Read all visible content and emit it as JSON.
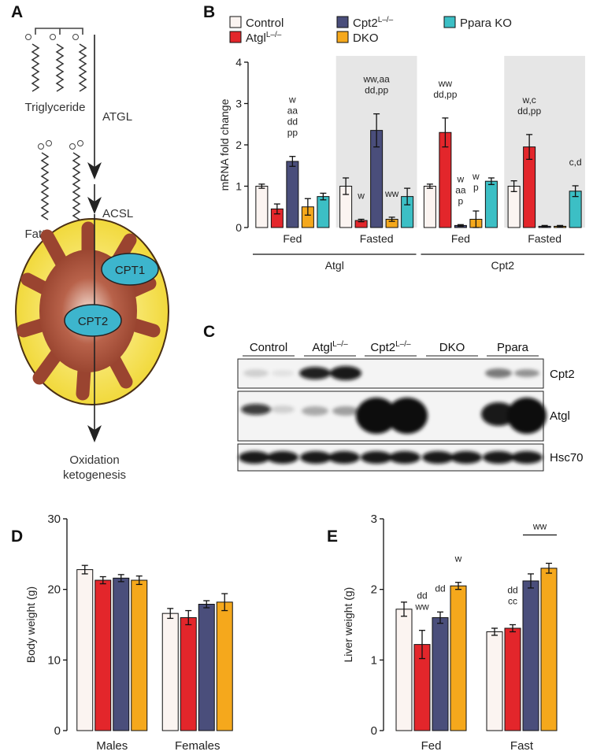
{
  "panel_labels": [
    "A",
    "B",
    "C",
    "D",
    "E"
  ],
  "diagram": {
    "molecules": [
      "Triglyceride",
      "Fatty acid"
    ],
    "enzymes": [
      "ATGL",
      "ACSL"
    ],
    "transporters": [
      "CPT1",
      "CPT2"
    ],
    "outcome": [
      "Oxidation",
      "ketogenesis"
    ]
  },
  "blot": {
    "lanes": [
      {
        "name": "Control"
      },
      {
        "name": "Atgl",
        "sup": "L–/–"
      },
      {
        "name": "Cpt2",
        "sup": "L–/–"
      },
      {
        "name": "DKO"
      },
      {
        "name": "Ppara"
      }
    ],
    "rows": [
      "Cpt2",
      "Atgl",
      "Hsc70"
    ]
  },
  "chart_data": [
    {
      "type": "bar",
      "ylabel": "mRNA fold change",
      "categories": [
        "Fed",
        "Fasted",
        "Fed",
        "Fasted"
      ],
      "group_labels": [
        "Atgl",
        "Cpt2"
      ],
      "shaded": [
        false,
        true,
        false,
        true
      ],
      "legend": true,
      "ylim": [
        0,
        4
      ],
      "yticks": [
        0,
        1,
        2,
        3,
        4
      ],
      "series": [
        {
          "name": "Control",
          "color": "#fbf4f1",
          "values": [
            1.0,
            1.0,
            1.0,
            1.0
          ],
          "errors": [
            0.05,
            0.2,
            0.05,
            0.13
          ]
        },
        {
          "name": "Atgl",
          "name_sup": "L–/–",
          "color": "#e3262b",
          "values": [
            0.45,
            0.17,
            2.3,
            1.95
          ],
          "errors": [
            0.12,
            0.03,
            0.35,
            0.3
          ],
          "annotations": [
            null,
            [
              "w"
            ],
            [
              "ww",
              "dd,pp"
            ],
            [
              "w,c",
              "dd,pp"
            ]
          ]
        },
        {
          "name": "Cpt2",
          "name_sup": "L–/–",
          "color": "#4a4e7b",
          "values": [
            1.6,
            2.35,
            0.05,
            0.03
          ],
          "errors": [
            0.12,
            0.4,
            0.02,
            0.02
          ],
          "annotations": [
            [
              "w",
              "aa",
              "dd",
              "pp"
            ],
            [
              "ww,aa",
              "dd,pp"
            ],
            [
              "w",
              "aa",
              "p"
            ],
            null
          ]
        },
        {
          "name": "DKO",
          "color": "#f5a81c",
          "values": [
            0.5,
            0.2,
            0.2,
            0.03
          ],
          "errors": [
            0.2,
            0.05,
            0.2,
            0.02
          ],
          "annotations": [
            null,
            [
              "ww"
            ],
            [
              "w",
              "p"
            ],
            null
          ]
        },
        {
          "name": "Ppara KO",
          "color": "#3cbfc5",
          "values": [
            0.75,
            0.75,
            1.12,
            0.88
          ],
          "errors": [
            0.08,
            0.2,
            0.08,
            0.13
          ],
          "annotations": [
            null,
            null,
            null,
            [
              "c,d"
            ]
          ]
        }
      ]
    },
    {
      "type": "bar",
      "ylabel": "Body weight (g)",
      "categories": [
        "Males",
        "Females"
      ],
      "ylim": [
        0,
        30
      ],
      "yticks": [
        0,
        10,
        20,
        30
      ],
      "series": [
        {
          "color": "#fbf4f1",
          "values": [
            22.8,
            16.6
          ],
          "errors": [
            0.6,
            0.7
          ]
        },
        {
          "color": "#e3262b",
          "values": [
            21.3,
            16.0
          ],
          "errors": [
            0.5,
            1.0
          ]
        },
        {
          "color": "#4a4e7b",
          "values": [
            21.6,
            17.9
          ],
          "errors": [
            0.5,
            0.5
          ]
        },
        {
          "color": "#f5a81c",
          "values": [
            21.3,
            18.2
          ],
          "errors": [
            0.6,
            1.2
          ]
        }
      ]
    },
    {
      "type": "bar",
      "ylabel": "Liver weight (g)",
      "categories": [
        "Fed",
        "Fast"
      ],
      "ylim": [
        0,
        3
      ],
      "yticks": [
        0,
        1,
        2,
        3
      ],
      "bracket_label": "ww",
      "series": [
        {
          "color": "#fbf4f1",
          "values": [
            1.72,
            1.4
          ],
          "errors": [
            0.1,
            0.05
          ]
        },
        {
          "color": "#e3262b",
          "values": [
            1.22,
            1.45
          ],
          "errors": [
            0.2,
            0.05
          ],
          "annotations": [
            [
              "dd",
              "ww"
            ],
            [
              "dd",
              "cc"
            ]
          ]
        },
        {
          "color": "#4a4e7b",
          "values": [
            1.6,
            2.12
          ],
          "errors": [
            0.08,
            0.1
          ],
          "annotations": [
            [
              "dd"
            ],
            null
          ]
        },
        {
          "color": "#f5a81c",
          "values": [
            2.05,
            2.3
          ],
          "errors": [
            0.05,
            0.07
          ],
          "annotations": [
            [
              "w"
            ],
            null
          ]
        }
      ]
    }
  ]
}
